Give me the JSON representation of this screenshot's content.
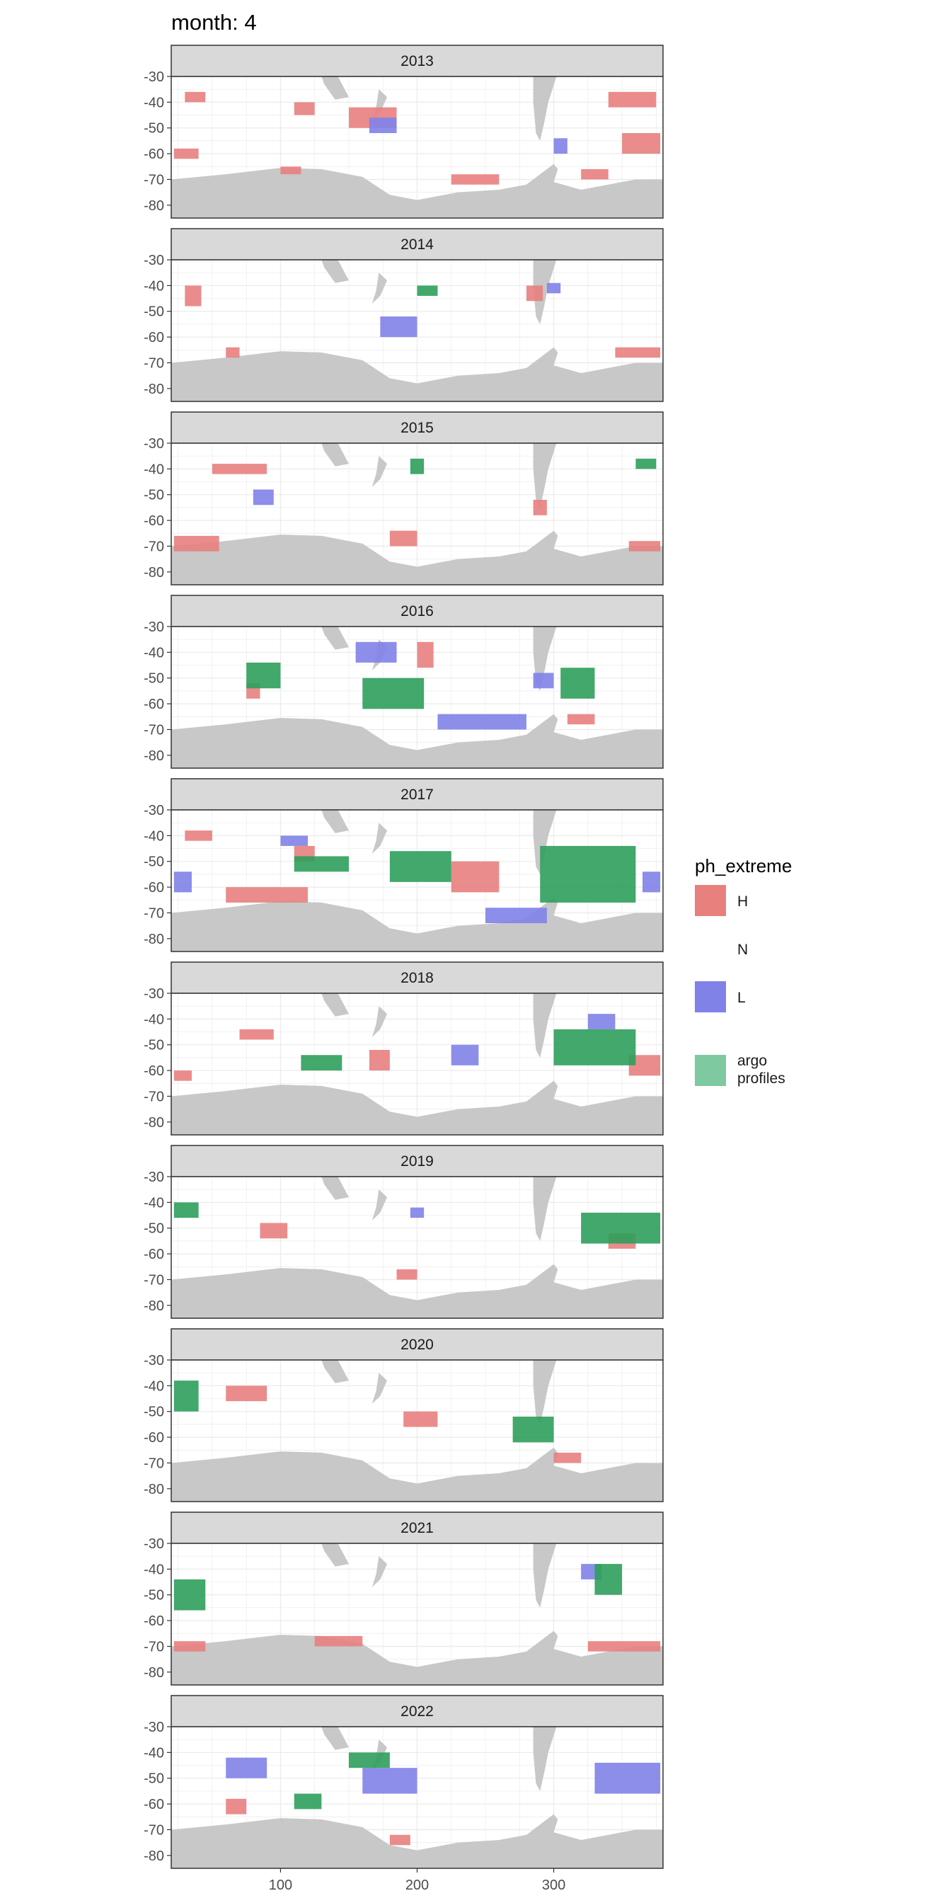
{
  "chart_data": {
    "type": "heatmap",
    "title": "month: 4",
    "facet_prefix": "",
    "panels": [
      "2013",
      "2014",
      "2015",
      "2016",
      "2017",
      "2018",
      "2019",
      "2020",
      "2021",
      "2022"
    ],
    "x_ticks": [
      100,
      200,
      300
    ],
    "y_ticks": [
      -30,
      -40,
      -50,
      -60,
      -70,
      -80
    ],
    "xlim": [
      20,
      380
    ],
    "ylim": [
      -85,
      -30
    ],
    "grid": true,
    "legend": {
      "title": "ph_extreme",
      "placement": "right",
      "entries": [
        {
          "label": "H",
          "color": "#E8807E"
        },
        {
          "label": "N",
          "color": null
        },
        {
          "label": "L",
          "color": "#8082E8"
        }
      ],
      "extra_entries": [
        {
          "label_lines": [
            "argo",
            "profiles"
          ],
          "color": "#7FC9A0"
        }
      ]
    },
    "colors": {
      "land": "#C8C8C8",
      "strip": "#D9D9D9",
      "H": "#E8807E",
      "L": "#8082E8",
      "argo": "#2E9E5B"
    },
    "series": [
      {
        "name": "H",
        "color": "#E8807E",
        "patches": [
          {
            "panel": "2013",
            "x": [
              30,
              45
            ],
            "y": [
              -40,
              -36
            ]
          },
          {
            "panel": "2013",
            "x": [
              150,
              185
            ],
            "y": [
              -50,
              -42
            ]
          },
          {
            "panel": "2013",
            "x": [
              110,
              125
            ],
            "y": [
              -45,
              -40
            ]
          },
          {
            "panel": "2013",
            "x": [
              340,
              375
            ],
            "y": [
              -42,
              -36
            ]
          },
          {
            "panel": "2013",
            "x": [
              350,
              378
            ],
            "y": [
              -60,
              -52
            ]
          },
          {
            "panel": "2013",
            "x": [
              22,
              40
            ],
            "y": [
              -62,
              -58
            ]
          },
          {
            "panel": "2013",
            "x": [
              320,
              340
            ],
            "y": [
              -70,
              -66
            ]
          },
          {
            "panel": "2013",
            "x": [
              225,
              260
            ],
            "y": [
              -72,
              -68
            ]
          },
          {
            "panel": "2013",
            "x": [
              100,
              115
            ],
            "y": [
              -68,
              -65
            ]
          },
          {
            "panel": "2014",
            "x": [
              30,
              42
            ],
            "y": [
              -48,
              -40
            ]
          },
          {
            "panel": "2014",
            "x": [
              345,
              378
            ],
            "y": [
              -68,
              -64
            ]
          },
          {
            "panel": "2014",
            "x": [
              60,
              70
            ],
            "y": [
              -68,
              -64
            ]
          },
          {
            "panel": "2014",
            "x": [
              280,
              292
            ],
            "y": [
              -46,
              -40
            ]
          },
          {
            "panel": "2015",
            "x": [
              50,
              90
            ],
            "y": [
              -42,
              -38
            ]
          },
          {
            "panel": "2015",
            "x": [
              22,
              55
            ],
            "y": [
              -72,
              -66
            ]
          },
          {
            "panel": "2015",
            "x": [
              285,
              295
            ],
            "y": [
              -58,
              -52
            ]
          },
          {
            "panel": "2015",
            "x": [
              355,
              378
            ],
            "y": [
              -72,
              -68
            ]
          },
          {
            "panel": "2015",
            "x": [
              180,
              200
            ],
            "y": [
              -70,
              -64
            ]
          },
          {
            "panel": "2016",
            "x": [
              200,
              212
            ],
            "y": [
              -46,
              -36
            ]
          },
          {
            "panel": "2016",
            "x": [
              310,
              330
            ],
            "y": [
              -68,
              -64
            ]
          },
          {
            "panel": "2016",
            "x": [
              75,
              85
            ],
            "y": [
              -58,
              -52
            ]
          },
          {
            "panel": "2017",
            "x": [
              60,
              120
            ],
            "y": [
              -66,
              -60
            ]
          },
          {
            "panel": "2017",
            "x": [
              225,
              260
            ],
            "y": [
              -62,
              -50
            ]
          },
          {
            "panel": "2017",
            "x": [
              30,
              50
            ],
            "y": [
              -42,
              -38
            ]
          },
          {
            "panel": "2017",
            "x": [
              110,
              125
            ],
            "y": [
              -50,
              -44
            ]
          },
          {
            "panel": "2018",
            "x": [
              165,
              180
            ],
            "y": [
              -60,
              -52
            ]
          },
          {
            "panel": "2018",
            "x": [
              355,
              378
            ],
            "y": [
              -62,
              -54
            ]
          },
          {
            "panel": "2018",
            "x": [
              22,
              35
            ],
            "y": [
              -64,
              -60
            ]
          },
          {
            "panel": "2018",
            "x": [
              70,
              95
            ],
            "y": [
              -48,
              -44
            ]
          },
          {
            "panel": "2019",
            "x": [
              85,
              105
            ],
            "y": [
              -54,
              -48
            ]
          },
          {
            "panel": "2019",
            "x": [
              340,
              360
            ],
            "y": [
              -58,
              -52
            ]
          },
          {
            "panel": "2019",
            "x": [
              185,
              200
            ],
            "y": [
              -70,
              -66
            ]
          },
          {
            "panel": "2020",
            "x": [
              60,
              90
            ],
            "y": [
              -46,
              -40
            ]
          },
          {
            "panel": "2020",
            "x": [
              300,
              320
            ],
            "y": [
              -70,
              -66
            ]
          },
          {
            "panel": "2020",
            "x": [
              190,
              215
            ],
            "y": [
              -56,
              -50
            ]
          },
          {
            "panel": "2021",
            "x": [
              325,
              378
            ],
            "y": [
              -72,
              -68
            ]
          },
          {
            "panel": "2021",
            "x": [
              22,
              45
            ],
            "y": [
              -72,
              -68
            ]
          },
          {
            "panel": "2021",
            "x": [
              125,
              160
            ],
            "y": [
              -70,
              -66
            ]
          },
          {
            "panel": "2022",
            "x": [
              60,
              75
            ],
            "y": [
              -64,
              -58
            ]
          },
          {
            "panel": "2022",
            "x": [
              180,
              195
            ],
            "y": [
              -76,
              -72
            ]
          }
        ]
      },
      {
        "name": "L",
        "color": "#8082E8",
        "patches": [
          {
            "panel": "2013",
            "x": [
              165,
              185
            ],
            "y": [
              -52,
              -46
            ]
          },
          {
            "panel": "2013",
            "x": [
              300,
              310
            ],
            "y": [
              -60,
              -54
            ]
          },
          {
            "panel": "2014",
            "x": [
              173,
              200
            ],
            "y": [
              -60,
              -52
            ]
          },
          {
            "panel": "2014",
            "x": [
              295,
              305
            ],
            "y": [
              -43,
              -39
            ]
          },
          {
            "panel": "2015",
            "x": [
              80,
              95
            ],
            "y": [
              -54,
              -48
            ]
          },
          {
            "panel": "2016",
            "x": [
              155,
              185
            ],
            "y": [
              -44,
              -36
            ]
          },
          {
            "panel": "2016",
            "x": [
              215,
              280
            ],
            "y": [
              -70,
              -64
            ]
          },
          {
            "panel": "2016",
            "x": [
              285,
              300
            ],
            "y": [
              -54,
              -48
            ]
          },
          {
            "panel": "2017",
            "x": [
              22,
              35
            ],
            "y": [
              -62,
              -54
            ]
          },
          {
            "panel": "2017",
            "x": [
              365,
              378
            ],
            "y": [
              -62,
              -54
            ]
          },
          {
            "panel": "2017",
            "x": [
              250,
              295
            ],
            "y": [
              -74,
              -68
            ]
          },
          {
            "panel": "2017",
            "x": [
              100,
              120
            ],
            "y": [
              -44,
              -40
            ]
          },
          {
            "panel": "2018",
            "x": [
              225,
              245
            ],
            "y": [
              -58,
              -50
            ]
          },
          {
            "panel": "2018",
            "x": [
              325,
              345
            ],
            "y": [
              -44,
              -38
            ]
          },
          {
            "panel": "2019",
            "x": [
              195,
              205
            ],
            "y": [
              -46,
              -42
            ]
          },
          {
            "panel": "2021",
            "x": [
              320,
              335
            ],
            "y": [
              -44,
              -38
            ]
          },
          {
            "panel": "2022",
            "x": [
              330,
              378
            ],
            "y": [
              -56,
              -44
            ]
          },
          {
            "panel": "2022",
            "x": [
              160,
              200
            ],
            "y": [
              -56,
              -46
            ]
          },
          {
            "panel": "2022",
            "x": [
              60,
              90
            ],
            "y": [
              -50,
              -42
            ]
          }
        ]
      },
      {
        "name": "argo profiles",
        "color": "#2E9E5B",
        "patches": [
          {
            "panel": "2014",
            "x": [
              200,
              215
            ],
            "y": [
              -44,
              -40
            ]
          },
          {
            "panel": "2015",
            "x": [
              195,
              205
            ],
            "y": [
              -42,
              -36
            ]
          },
          {
            "panel": "2015",
            "x": [
              360,
              375
            ],
            "y": [
              -40,
              -36
            ]
          },
          {
            "panel": "2016",
            "x": [
              75,
              100
            ],
            "y": [
              -54,
              -44
            ]
          },
          {
            "panel": "2016",
            "x": [
              305,
              330
            ],
            "y": [
              -58,
              -46
            ]
          },
          {
            "panel": "2016",
            "x": [
              160,
              205
            ],
            "y": [
              -62,
              -50
            ]
          },
          {
            "panel": "2017",
            "x": [
              290,
              360
            ],
            "y": [
              -66,
              -44
            ]
          },
          {
            "panel": "2017",
            "x": [
              180,
              225
            ],
            "y": [
              -58,
              -46
            ]
          },
          {
            "panel": "2017",
            "x": [
              110,
              150
            ],
            "y": [
              -54,
              -48
            ]
          },
          {
            "panel": "2018",
            "x": [
              300,
              360
            ],
            "y": [
              -58,
              -44
            ]
          },
          {
            "panel": "2018",
            "x": [
              115,
              145
            ],
            "y": [
              -60,
              -54
            ]
          },
          {
            "panel": "2019",
            "x": [
              320,
              378
            ],
            "y": [
              -56,
              -44
            ]
          },
          {
            "panel": "2019",
            "x": [
              22,
              40
            ],
            "y": [
              -46,
              -40
            ]
          },
          {
            "panel": "2020",
            "x": [
              22,
              40
            ],
            "y": [
              -50,
              -38
            ]
          },
          {
            "panel": "2020",
            "x": [
              270,
              300
            ],
            "y": [
              -62,
              -52
            ]
          },
          {
            "panel": "2021",
            "x": [
              22,
              45
            ],
            "y": [
              -56,
              -44
            ]
          },
          {
            "panel": "2021",
            "x": [
              330,
              350
            ],
            "y": [
              -50,
              -38
            ]
          },
          {
            "panel": "2022",
            "x": [
              150,
              180
            ],
            "y": [
              -46,
              -40
            ]
          },
          {
            "panel": "2022",
            "x": [
              110,
              130
            ],
            "y": [
              -62,
              -56
            ]
          }
        ]
      }
    ]
  }
}
